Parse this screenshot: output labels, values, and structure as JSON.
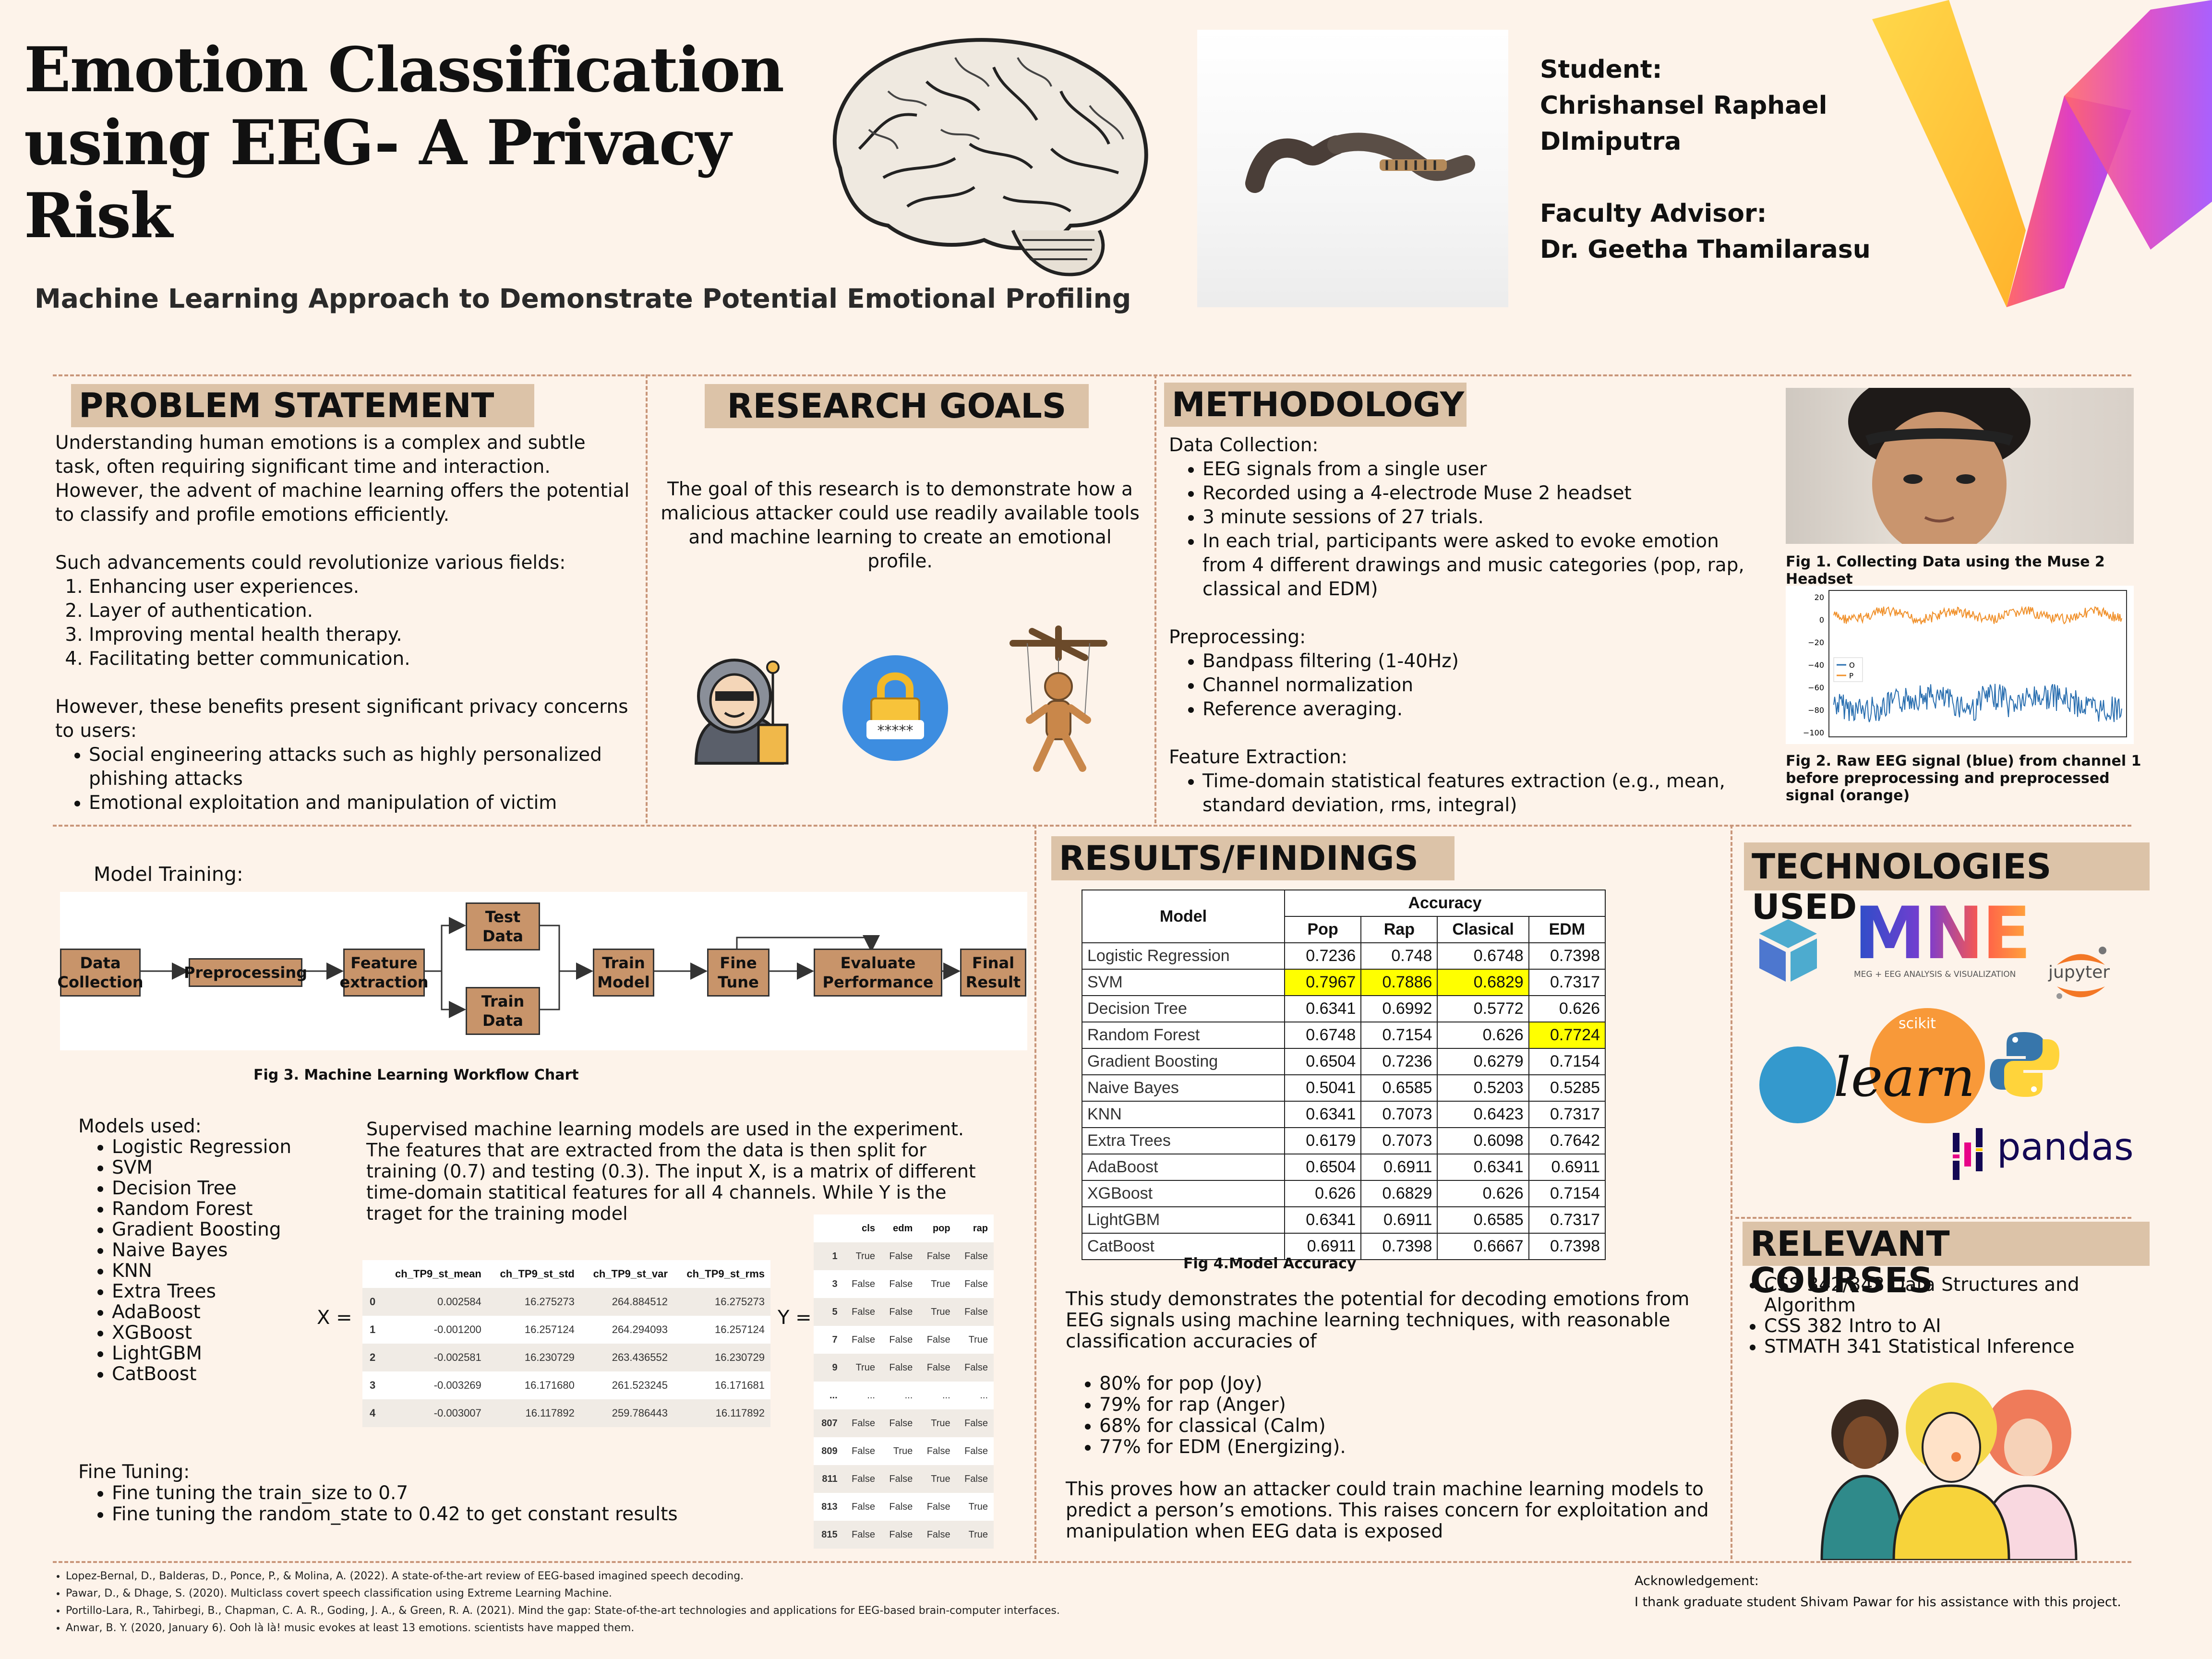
{
  "header": {
    "title": "Emotion Classification using EEG- A Privacy Risk",
    "subtitle": "Machine Learning Approach to Demonstrate Potential Emotional Profiling",
    "student_label": "Student:",
    "student_name_1": "Chrishansel Raphael",
    "student_name_2": "DImiputra",
    "advisor_label": "Faculty Advisor:",
    "advisor_name": "Dr. Geetha Thamilarasu"
  },
  "problem": {
    "heading": "PROBLEM STATEMENT",
    "p1": "Understanding human emotions is a complex and subtle task, often requiring significant time and interaction. However, the advent of machine learning offers the potential to classify and profile emotions efficiently.",
    "p2": "Such advancements could revolutionize various fields:",
    "fields": [
      "Enhancing user experiences.",
      "Layer of authentication.",
      "Improving mental health therapy.",
      "Facilitating better communication."
    ],
    "p3": "However, these benefits present significant privacy concerns to users:",
    "concerns": [
      "Social engineering attacks such as highly personalized phishing attacks",
      "Emotional exploitation and manipulation of victim"
    ]
  },
  "goals": {
    "heading": "RESEARCH GOALS",
    "text": "The goal of this research is to demonstrate how a malicious attacker could use readily available tools and machine learning to create an emotional profile."
  },
  "method": {
    "heading": "METHODOLOGY",
    "dc_label": "Data Collection:",
    "dc": [
      "EEG signals from a single user",
      "Recorded using a 4-electrode Muse 2 headset",
      "3 minute sessions of 27 trials.",
      "In each trial, participants were asked to evoke emotion from 4 different drawings and music categories (pop, rap, classical and EDM)"
    ],
    "pre_label": "Preprocessing:",
    "pre": [
      "Bandpass filtering (1-40Hz)",
      "Channel normalization",
      "Reference averaging."
    ],
    "fe_label": "Feature Extraction:",
    "fe": [
      "Time-domain statistical features extraction (e.g., mean, standard deviation, rms, integral)"
    ],
    "fig1": "Fig 1. Collecting Data using the Muse 2 Headset",
    "fig2": "Fig 2. Raw EEG signal (blue) from channel 1 before preprocessing and preprocessed signal (orange)",
    "legend_o": "O",
    "legend_p": "P",
    "yticks": [
      "20",
      "0",
      "−20",
      "−40",
      "−60",
      "−80",
      "−100"
    ]
  },
  "training": {
    "label": "Model Training:",
    "flow": {
      "data_collection": "Data Collection",
      "preprocessing": "Preprocessing",
      "feature": "Feature extraction",
      "test": "Test Data",
      "train": "Train Data",
      "train_model": "Train Model",
      "fine_tune": "Fine Tune",
      "evaluate": "Evaluate Performance",
      "final": "Final Result"
    },
    "fig3": "Fig 3. Machine Learning Workflow Chart",
    "models_label": "Models used:",
    "models": [
      "Logistic Regression",
      "SVM",
      "Decision Tree",
      "Random Forest",
      "Gradient Boosting",
      "Naive Bayes",
      "KNN",
      "Extra Trees",
      "AdaBoost",
      "XGBoost",
      "LightGBM",
      "CatBoost"
    ],
    "desc": "Supervised machine learning models are used in the experiment. The features that are extracted from the data is then split for training (0.7) and testing (0.3). The input X, is a matrix of different time-domain statitical features for all 4 channels. While Y is the traget for the training model",
    "x_eq": "X =",
    "y_eq": "Y =",
    "x_headers": [
      "",
      "ch_TP9_st_mean",
      "ch_TP9_st_std",
      "ch_TP9_st_var",
      "ch_TP9_st_rms"
    ],
    "x_rows": [
      [
        "0",
        "0.002584",
        "16.275273",
        "264.884512",
        "16.275273"
      ],
      [
        "1",
        "-0.001200",
        "16.257124",
        "264.294093",
        "16.257124"
      ],
      [
        "2",
        "-0.002581",
        "16.230729",
        "263.436552",
        "16.230729"
      ],
      [
        "3",
        "-0.003269",
        "16.171680",
        "261.523245",
        "16.171681"
      ],
      [
        "4",
        "-0.003007",
        "16.117892",
        "259.786443",
        "16.117892"
      ]
    ],
    "y_headers": [
      "",
      "cls",
      "edm",
      "pop",
      "rap"
    ],
    "y_rows": [
      [
        "1",
        "True",
        "False",
        "False",
        "False"
      ],
      [
        "3",
        "False",
        "False",
        "True",
        "False"
      ],
      [
        "5",
        "False",
        "False",
        "True",
        "False"
      ],
      [
        "7",
        "False",
        "False",
        "False",
        "True"
      ],
      [
        "9",
        "True",
        "False",
        "False",
        "False"
      ],
      [
        "...",
        "...",
        "...",
        "...",
        "..."
      ],
      [
        "807",
        "False",
        "False",
        "True",
        "False"
      ],
      [
        "809",
        "False",
        "True",
        "False",
        "False"
      ],
      [
        "811",
        "False",
        "False",
        "True",
        "False"
      ],
      [
        "813",
        "False",
        "False",
        "False",
        "True"
      ],
      [
        "815",
        "False",
        "False",
        "False",
        "True"
      ]
    ],
    "ft_label": "Fine Tuning:",
    "ft": [
      "Fine tuning the train_size to 0.7",
      "Fine tuning the random_state to 0.42 to get constant results"
    ]
  },
  "results": {
    "heading": "RESULTS/FINDINGS",
    "col_model": "Model",
    "col_accuracy": "Accuracy",
    "cols": [
      "Pop",
      "Rap",
      "Clasical",
      "EDM"
    ],
    "rows": [
      {
        "model": "Logistic Regression",
        "vals": [
          "0.7236",
          "0.748",
          "0.6748",
          "0.7398"
        ],
        "hl": [
          false,
          false,
          false,
          false
        ]
      },
      {
        "model": "SVM",
        "vals": [
          "0.7967",
          "0.7886",
          "0.6829",
          "0.7317"
        ],
        "hl": [
          true,
          true,
          true,
          false
        ]
      },
      {
        "model": "Decision Tree",
        "vals": [
          "0.6341",
          "0.6992",
          "0.5772",
          "0.626"
        ],
        "hl": [
          false,
          false,
          false,
          false
        ]
      },
      {
        "model": "Random Forest",
        "vals": [
          "0.6748",
          "0.7154",
          "0.626",
          "0.7724"
        ],
        "hl": [
          false,
          false,
          false,
          true
        ]
      },
      {
        "model": "Gradient Boosting",
        "vals": [
          "0.6504",
          "0.7236",
          "0.6279",
          "0.7154"
        ],
        "hl": [
          false,
          false,
          false,
          false
        ]
      },
      {
        "model": "Naive Bayes",
        "vals": [
          "0.5041",
          "0.6585",
          "0.5203",
          "0.5285"
        ],
        "hl": [
          false,
          false,
          false,
          false
        ]
      },
      {
        "model": "KNN",
        "vals": [
          "0.6341",
          "0.7073",
          "0.6423",
          "0.7317"
        ],
        "hl": [
          false,
          false,
          false,
          false
        ]
      },
      {
        "model": "Extra Trees",
        "vals": [
          "0.6179",
          "0.7073",
          "0.6098",
          "0.7642"
        ],
        "hl": [
          false,
          false,
          false,
          false
        ]
      },
      {
        "model": "AdaBoost",
        "vals": [
          "0.6504",
          "0.6911",
          "0.6341",
          "0.6911"
        ],
        "hl": [
          false,
          false,
          false,
          false
        ]
      },
      {
        "model": "XGBoost",
        "vals": [
          "0.626",
          "0.6829",
          "0.626",
          "0.7154"
        ],
        "hl": [
          false,
          false,
          false,
          false
        ]
      },
      {
        "model": "LightGBM",
        "vals": [
          "0.6341",
          "0.6911",
          "0.6585",
          "0.7317"
        ],
        "hl": [
          false,
          false,
          false,
          false
        ]
      },
      {
        "model": "CatBoost",
        "vals": [
          "0.6911",
          "0.7398",
          "0.6667",
          "0.7398"
        ],
        "hl": [
          false,
          false,
          false,
          false
        ]
      }
    ],
    "fig4": "Fig 4.Model Accuracy",
    "p1": "This study demonstrates the potential for decoding emotions from EEG signals using machine learning techniques, with reasonable classification accuracies of",
    "acc": [
      "80% for pop (Joy)",
      "79% for rap (Anger)",
      "68% for classical (Calm)",
      "77% for EDM (Energizing)."
    ],
    "p2": "This proves how an attacker could train machine learning models to predict a person’s emotions. This raises concern for exploitation and manipulation when EEG data is exposed"
  },
  "tech": {
    "heading": "TECHNOLOGIES USED",
    "mne": "MNE",
    "mne_sub": "MEG + EEG ANALYSIS & VISUALIZATION",
    "jupyter": "jupyter",
    "scikit": "scikit",
    "learn": "learn",
    "pandas": "pandas"
  },
  "courses": {
    "heading": "RELEVANT COURSES",
    "items": [
      "CSS 342/343 Data Structures and Algorithm",
      "CSS 382 Intro to AI",
      "STMATH 341 Statistical Inference"
    ]
  },
  "refs": [
    "Lopez-Bernal, D., Balderas, D., Ponce, P., & Molina, A. (2022). A state-of-the-art review of EEG-based imagined speech decoding.",
    "Pawar, D., & Dhage, S. (2020). Multiclass covert speech classification using Extreme Learning Machine.",
    "Portillo-Lara, R., Tahirbegi, B., Chapman, C. A. R., Goding, J. A., & Green, R. A. (2021). Mind the gap: State-of-the-art technologies and applications for EEG-based brain-computer interfaces.",
    "Anwar, B. Y. (2020, January 6). Ooh là là! music evokes at least 13 emotions. scientists have mapped them."
  ],
  "ack": {
    "label": "Acknowledgement:",
    "text": "I thank graduate student Shivam Pawar for his assistance with this project."
  }
}
